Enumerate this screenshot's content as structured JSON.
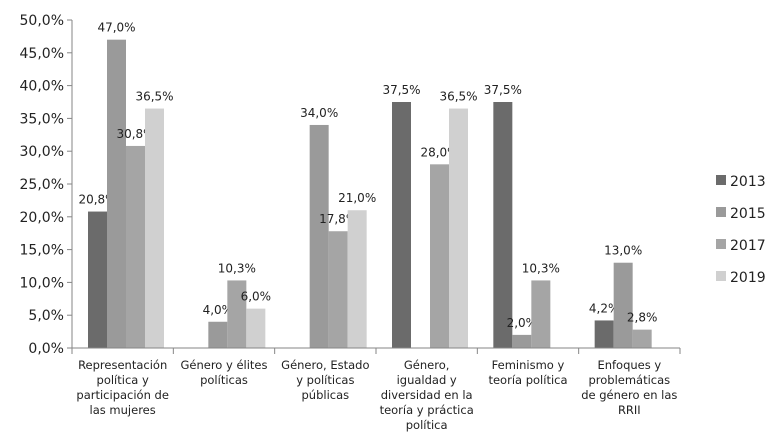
{
  "chart_data": {
    "type": "bar",
    "categories": [
      "Representación política y participación de las mujeres",
      "Género y élites políticas",
      "Género, Estado y políticas públicas",
      "Género, igualdad y diversidad en la teoría y práctica política",
      "Feminismo y teoría política",
      "Enfoques y problemáticas de género en las RRII"
    ],
    "series": [
      {
        "name": "2013",
        "color": "#6b6b6b",
        "values": [
          20.8,
          null,
          null,
          37.5,
          37.5,
          4.2
        ],
        "labels": [
          "20,8%",
          "",
          "",
          "37,5%",
          "37,5%",
          "4,2%"
        ]
      },
      {
        "name": "2015",
        "color": "#9a9a9a",
        "values": [
          47.0,
          4.0,
          34.0,
          null,
          2.0,
          13.0
        ],
        "labels": [
          "47,0%",
          "4,0%",
          "34,0%",
          "",
          "2,0%",
          "13,0%"
        ]
      },
      {
        "name": "2017",
        "color": "#a5a5a5",
        "values": [
          30.8,
          10.3,
          17.8,
          28.0,
          10.3,
          2.8
        ],
        "labels": [
          "30,8%",
          "10,3%",
          "17,8%",
          "28,0%",
          "10,3%",
          "2,8%"
        ]
      },
      {
        "name": "2019",
        "color": "#d0d0d0",
        "values": [
          36.5,
          6.0,
          21.0,
          36.5,
          null,
          null
        ],
        "labels": [
          "36,5%",
          "6,0%",
          "21,0%",
          "36,5%",
          "",
          ""
        ]
      }
    ],
    "ylim": [
      0,
      50
    ],
    "yticks": [
      "0,0%",
      "5,0%",
      "10,0%",
      "15,0%",
      "20,0%",
      "25,0%",
      "30,0%",
      "35,0%",
      "40,0%",
      "45,0%",
      "50,0%"
    ],
    "grid": false,
    "legend": "right",
    "title": "",
    "xlabel": "",
    "ylabel": ""
  }
}
